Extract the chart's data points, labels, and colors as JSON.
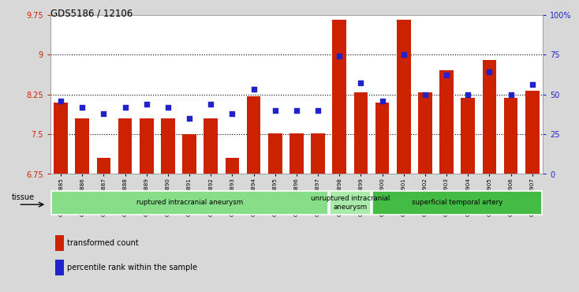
{
  "title": "GDS5186 / 12106",
  "samples": [
    "GSM1306885",
    "GSM1306886",
    "GSM1306887",
    "GSM1306888",
    "GSM1306889",
    "GSM1306890",
    "GSM1306891",
    "GSM1306892",
    "GSM1306893",
    "GSM1306894",
    "GSM1306895",
    "GSM1306896",
    "GSM1306897",
    "GSM1306898",
    "GSM1306899",
    "GSM1306900",
    "GSM1306901",
    "GSM1306902",
    "GSM1306903",
    "GSM1306904",
    "GSM1306905",
    "GSM1306906",
    "GSM1306907"
  ],
  "bar_values": [
    8.1,
    7.8,
    7.05,
    7.8,
    7.8,
    7.8,
    7.5,
    7.8,
    7.05,
    8.22,
    7.52,
    7.52,
    7.52,
    9.65,
    8.28,
    8.1,
    9.65,
    8.28,
    8.7,
    8.18,
    8.9,
    8.18,
    8.32
  ],
  "percentile_values": [
    46,
    42,
    38,
    42,
    44,
    42,
    35,
    44,
    38,
    53,
    40,
    40,
    40,
    74,
    57,
    46,
    75,
    50,
    62,
    50,
    64,
    50,
    56
  ],
  "ylim_left": [
    6.75,
    9.75
  ],
  "ylim_right": [
    0,
    100
  ],
  "yticks_left": [
    6.75,
    7.5,
    8.25,
    9.0,
    9.75
  ],
  "ytick_labels_left": [
    "6.75",
    "7.5",
    "8.25",
    "9",
    "9.75"
  ],
  "yticks_right": [
    0,
    25,
    50,
    75,
    100
  ],
  "ytick_labels_right": [
    "0",
    "25",
    "50",
    "75",
    "100%"
  ],
  "hlines": [
    7.5,
    8.25,
    9.0
  ],
  "bar_color": "#CC2200",
  "dot_color": "#2222CC",
  "bg_color": "#D8D8D8",
  "plot_bg": "#FFFFFF",
  "groups": [
    {
      "label": "ruptured intracranial aneurysm",
      "start": 0,
      "end": 13,
      "color": "#88DD88"
    },
    {
      "label": "unruptured intracranial\naneurysm",
      "start": 13,
      "end": 15,
      "color": "#AAEAAA"
    },
    {
      "label": "superficial temporal artery",
      "start": 15,
      "end": 23,
      "color": "#44BB44"
    }
  ],
  "tissue_label": "tissue",
  "legend_bar_label": "transformed count",
  "legend_dot_label": "percentile rank within the sample",
  "left_tick_color": "#CC2200",
  "right_tick_color": "#2222CC"
}
